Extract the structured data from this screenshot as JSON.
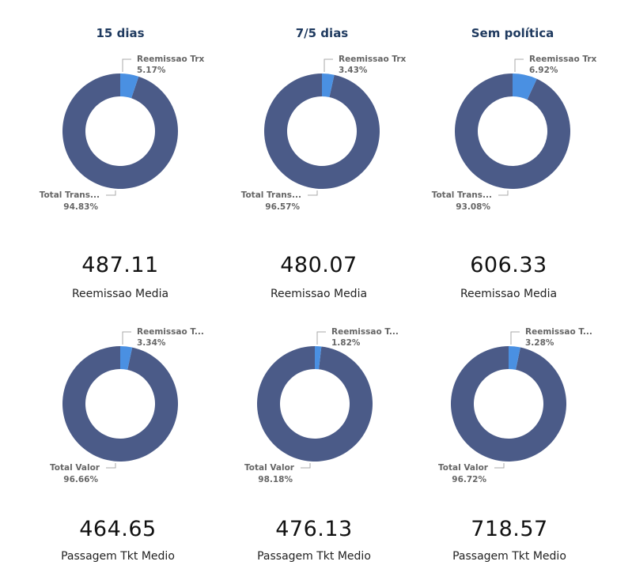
{
  "columns": [
    {
      "title": "15 dias"
    },
    {
      "title": "7/5 dias"
    },
    {
      "title": "Sem política"
    }
  ],
  "colors": {
    "main": "#4b5b88",
    "accent": "#4a90e2"
  },
  "chart_data": [
    {
      "type": "pie",
      "slices": [
        {
          "name": "Reemissao Trx",
          "value": 5.17,
          "label": "Reemissao Trx",
          "pct": "5.17%"
        },
        {
          "name": "Total Transações",
          "value": 94.83,
          "label": "Total Trans...",
          "pct": "94.83%"
        }
      ]
    },
    {
      "type": "pie",
      "slices": [
        {
          "name": "Reemissao Trx",
          "value": 3.43,
          "label": "Reemissao Trx",
          "pct": "3.43%"
        },
        {
          "name": "Total Transações",
          "value": 96.57,
          "label": "Total Trans...",
          "pct": "96.57%"
        }
      ]
    },
    {
      "type": "pie",
      "slices": [
        {
          "name": "Reemissao Trx",
          "value": 6.92,
          "label": "Reemissao Trx",
          "pct": "6.92%"
        },
        {
          "name": "Total Transações",
          "value": 93.08,
          "label": "Total Trans...",
          "pct": "93.08%"
        }
      ]
    },
    {
      "type": "pie",
      "slices": [
        {
          "name": "Reemissao Tkt",
          "value": 3.34,
          "label": "Reemissao T...",
          "pct": "3.34%"
        },
        {
          "name": "Total Valor",
          "value": 96.66,
          "label": "Total Valor",
          "pct": "96.66%"
        }
      ]
    },
    {
      "type": "pie",
      "slices": [
        {
          "name": "Reemissao Tkt",
          "value": 1.82,
          "label": "Reemissao T...",
          "pct": "1.82%"
        },
        {
          "name": "Total Valor",
          "value": 98.18,
          "label": "Total Valor",
          "pct": "98.18%"
        }
      ]
    },
    {
      "type": "pie",
      "slices": [
        {
          "name": "Reemissao Tkt",
          "value": 3.28,
          "label": "Reemissao T...",
          "pct": "3.28%"
        },
        {
          "name": "Total Valor",
          "value": 96.72,
          "label": "Total Valor",
          "pct": "96.72%"
        }
      ]
    }
  ],
  "kpis": [
    {
      "value": "487.11",
      "label": "Reemissao Media"
    },
    {
      "value": "480.07",
      "label": "Reemissao Media"
    },
    {
      "value": "606.33",
      "label": "Reemissao Media"
    },
    {
      "value": "464.65",
      "label": "Passagem Tkt Medio"
    },
    {
      "value": "476.13",
      "label": "Passagem Tkt Medio"
    },
    {
      "value": "718.57",
      "label": "Passagem Tkt Medio"
    }
  ]
}
